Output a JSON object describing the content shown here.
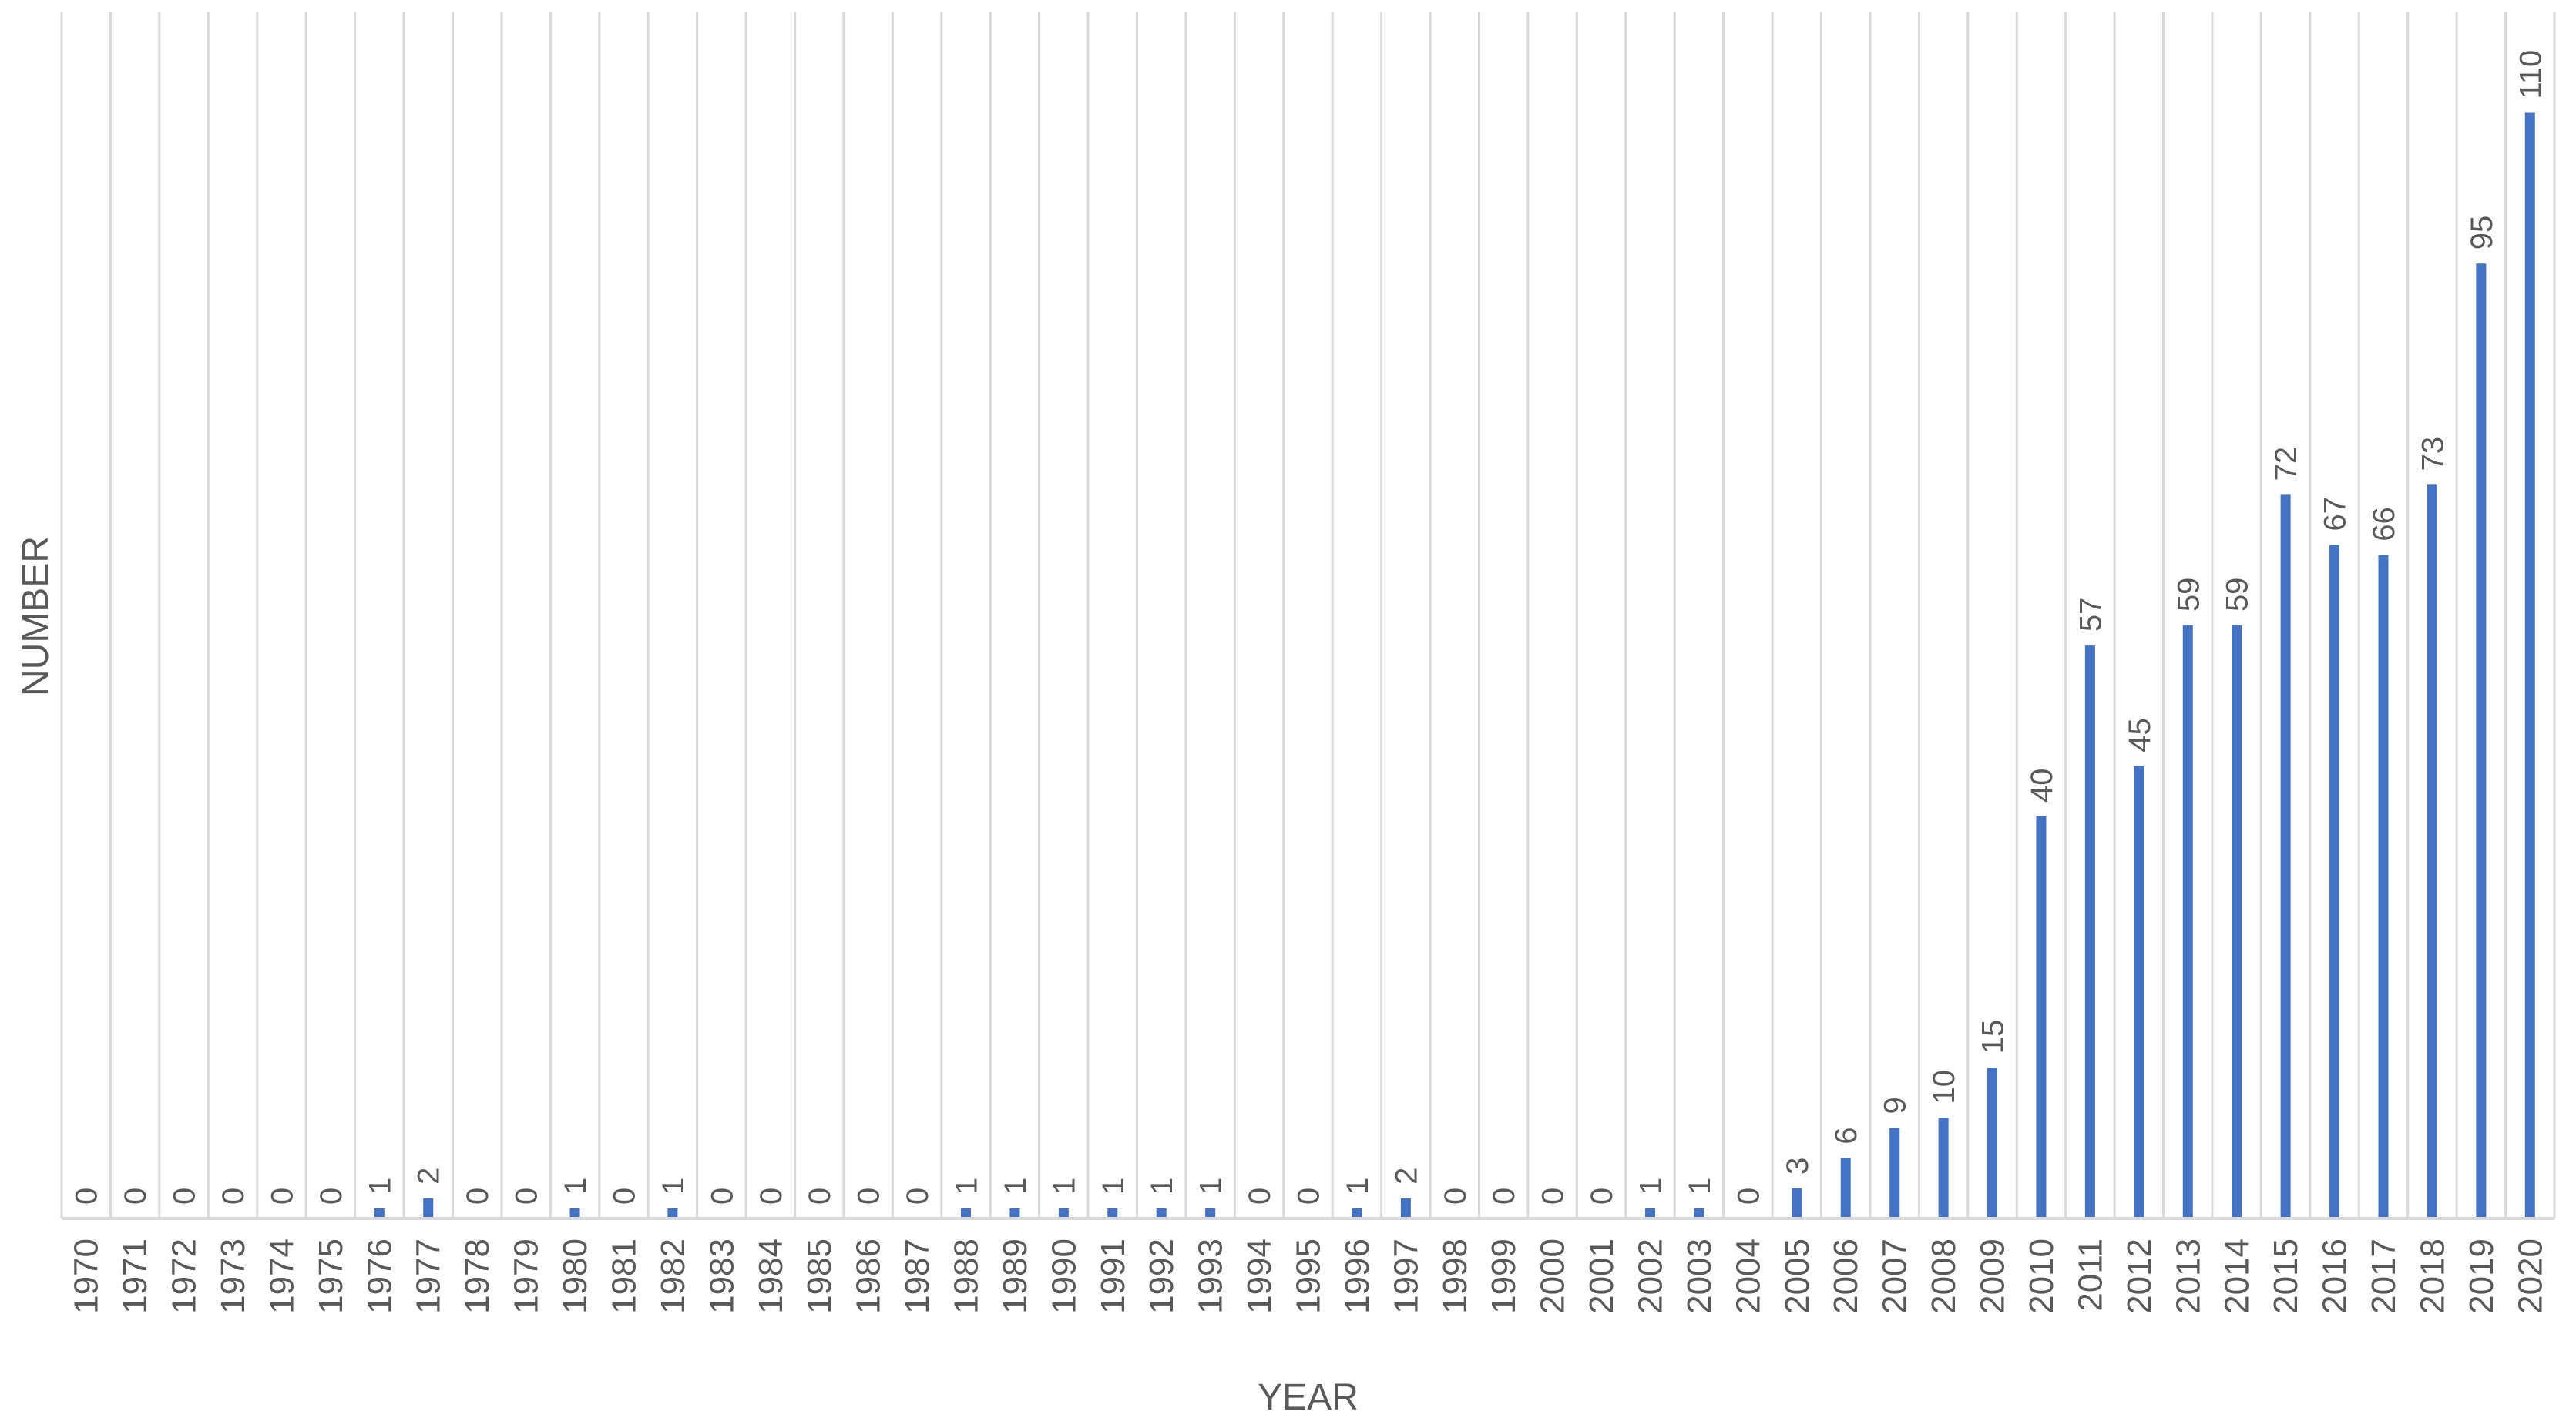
{
  "chart_data": {
    "type": "bar",
    "title": "",
    "xlabel": "YEAR",
    "ylabel": "NUMBER",
    "ylim": [
      0,
      120
    ],
    "grid": "vertical",
    "legend": "none",
    "bar_color": "#4472c4",
    "grid_color": "#d9d9d9",
    "text_color": "#595959",
    "categories": [
      "1970",
      "1971",
      "1972",
      "1973",
      "1974",
      "1975",
      "1976",
      "1977",
      "1978",
      "1979",
      "1980",
      "1981",
      "1982",
      "1983",
      "1984",
      "1985",
      "1986",
      "1987",
      "1988",
      "1989",
      "1990",
      "1991",
      "1992",
      "1993",
      "1994",
      "1995",
      "1996",
      "1997",
      "1998",
      "1999",
      "2000",
      "2001",
      "2002",
      "2003",
      "2004",
      "2005",
      "2006",
      "2007",
      "2008",
      "2009",
      "2010",
      "2011",
      "2012",
      "2013",
      "2014",
      "2015",
      "2016",
      "2017",
      "2018",
      "2019",
      "2020"
    ],
    "values": [
      0,
      0,
      0,
      0,
      0,
      0,
      1,
      2,
      0,
      0,
      1,
      0,
      1,
      0,
      0,
      0,
      0,
      0,
      1,
      1,
      1,
      1,
      1,
      1,
      0,
      0,
      1,
      2,
      0,
      0,
      0,
      0,
      1,
      1,
      0,
      3,
      6,
      9,
      10,
      15,
      40,
      57,
      45,
      59,
      59,
      72,
      67,
      66,
      73,
      95,
      110
    ]
  }
}
